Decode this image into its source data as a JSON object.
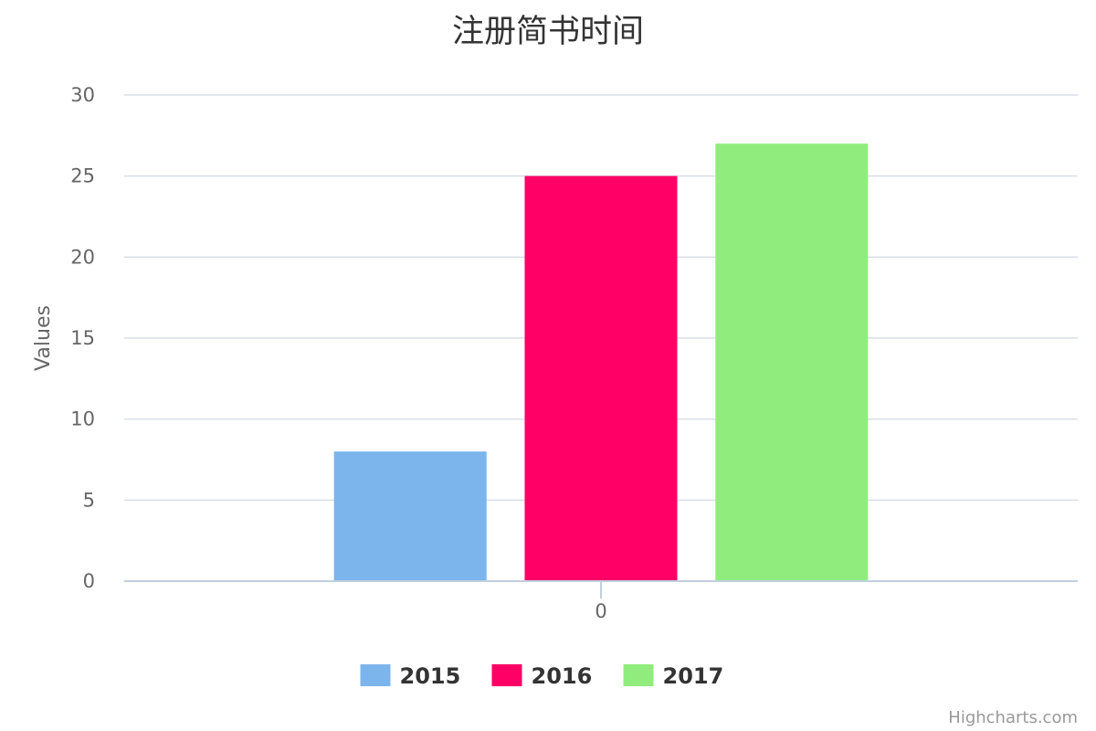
{
  "chart_data": {
    "type": "bar",
    "title": "注册简书时间",
    "ylabel": "Values",
    "xlabel": "",
    "categories": [
      "0"
    ],
    "ylim": [
      0,
      30
    ],
    "yticks": [
      0,
      5,
      10,
      15,
      20,
      25,
      30
    ],
    "grid": true,
    "legend_position": "bottom-center",
    "series": [
      {
        "name": "2015",
        "values": [
          8
        ],
        "color": "#7cb5ec"
      },
      {
        "name": "2016",
        "values": [
          25
        ],
        "color": "#ff0066"
      },
      {
        "name": "2017",
        "values": [
          27
        ],
        "color": "#90ed7d"
      }
    ]
  },
  "credits": "Highcharts.com"
}
